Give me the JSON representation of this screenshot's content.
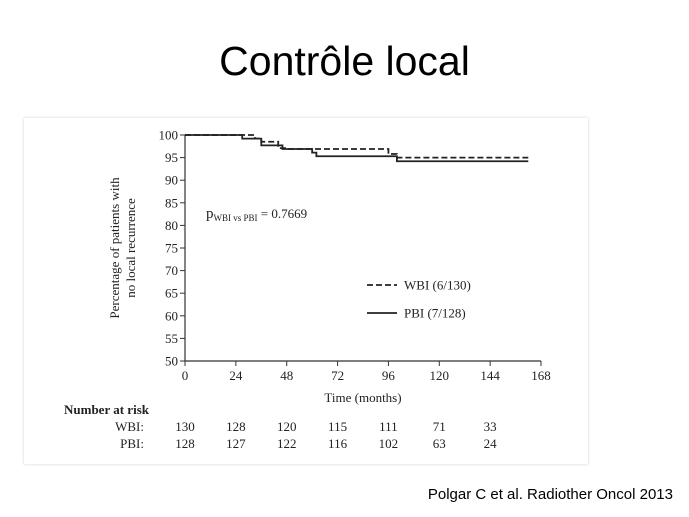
{
  "slide": {
    "title": "Contrôle local",
    "citation": "Polgar C et al. Radiother Oncol 2013"
  },
  "chart_data": {
    "type": "line",
    "subtype": "kaplan-meier",
    "title": "",
    "xlabel": "Time (months)",
    "ylabel_lines": [
      "Percentage of patients with",
      "no local recurrence"
    ],
    "xlim": [
      0,
      168
    ],
    "ylim": [
      50,
      100
    ],
    "xticks": [
      0,
      24,
      48,
      72,
      96,
      120,
      144,
      168
    ],
    "yticks": [
      50,
      55,
      60,
      65,
      70,
      75,
      80,
      85,
      90,
      95,
      100
    ],
    "grid": false,
    "legend_position": "center-right",
    "series": [
      {
        "name": "WBI (6/130)",
        "line_style": "dashed",
        "color": "#222222",
        "x": [
          0,
          33,
          36,
          44,
          49,
          65,
          96,
          100,
          162
        ],
        "y": [
          100,
          99.2,
          98.5,
          97.1,
          96.9,
          96.9,
          95.8,
          95,
          95
        ]
      },
      {
        "name": "PBI (7/128)",
        "line_style": "solid",
        "color": "#222222",
        "x": [
          0,
          27,
          36,
          46,
          60,
          62,
          78,
          100,
          162
        ],
        "y": [
          100,
          99.2,
          97.7,
          96.9,
          96.1,
          95.3,
          95.3,
          94.2,
          94.2
        ]
      }
    ],
    "annotation": {
      "p_prefix": "p",
      "p_subscript": "WBI vs PBI",
      "p_value": " = 0.7669"
    },
    "risk_table": {
      "header": "Number at risk",
      "rows": [
        {
          "label": "WBI:",
          "values": [
            130,
            128,
            120,
            115,
            111,
            71,
            33
          ]
        },
        {
          "label": "PBI:",
          "values": [
            128,
            127,
            122,
            116,
            102,
            63,
            24
          ]
        }
      ]
    }
  }
}
